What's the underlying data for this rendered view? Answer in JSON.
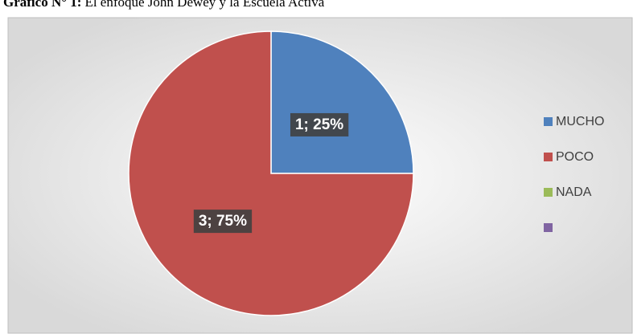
{
  "chart_data": {
    "type": "pie",
    "title_label": "Gráfico N° 1:",
    "title": "El enfoque John Dewey y la Escuela Activa",
    "categories": [
      "MUCHO",
      "POCO",
      "NADA",
      null
    ],
    "values": [
      1,
      3,
      0,
      0
    ],
    "value_labels": [
      "1; 25%",
      "3; 75%",
      null,
      null
    ],
    "colors": [
      "#4f81bd",
      "#c0504d",
      "#9bbb59",
      "#8064a2"
    ],
    "legend": "right"
  }
}
